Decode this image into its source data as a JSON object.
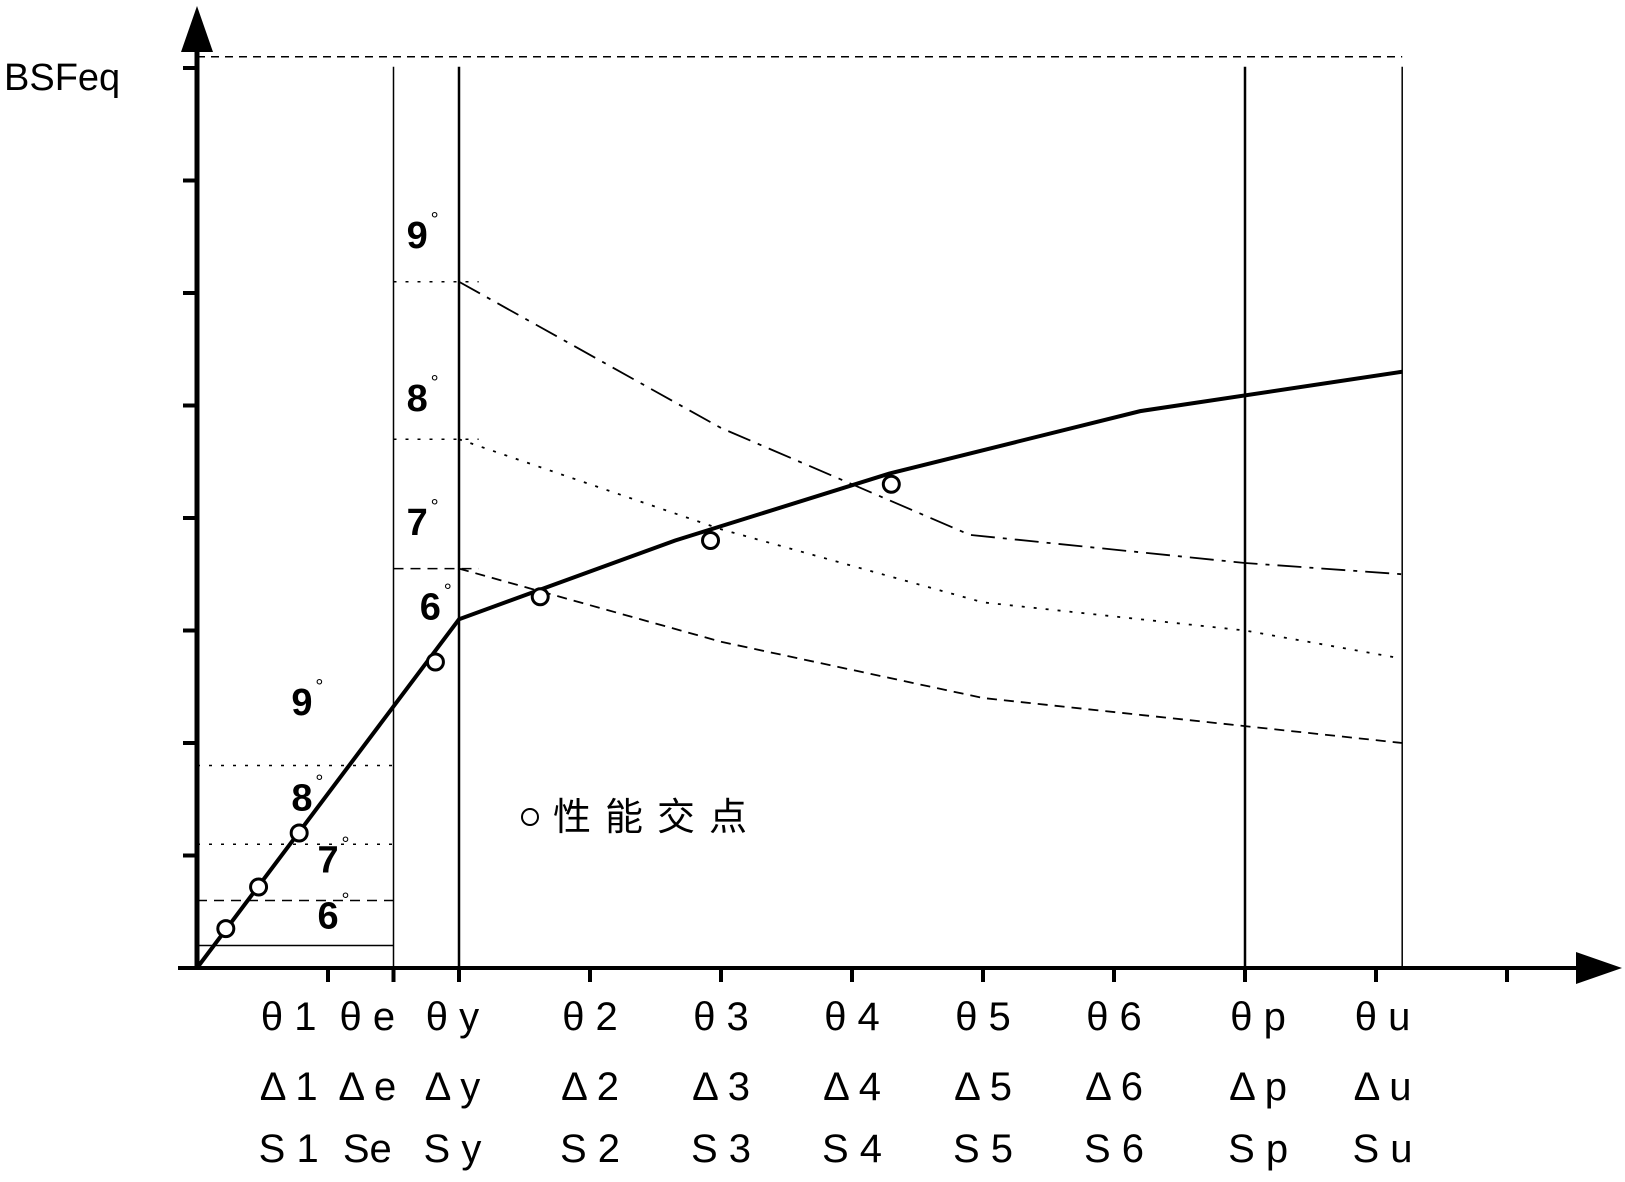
{
  "chart_data": {
    "type": "line",
    "ylabel": "BSFeq",
    "xlabel": "",
    "grid": false,
    "x_ticks": [
      {
        "theta": "θ 1",
        "delta": "Δ 1",
        "s": "S 1"
      },
      {
        "theta": "θ e",
        "delta": "Δ e",
        "s": "Se"
      },
      {
        "theta": "θ y",
        "delta": "Δ y",
        "s": "S y"
      },
      {
        "theta": "θ 2",
        "delta": "Δ 2",
        "s": "S 2"
      },
      {
        "theta": "θ 3",
        "delta": "Δ 3",
        "s": "S 3"
      },
      {
        "theta": "θ 4",
        "delta": "Δ 4",
        "s": "S 4"
      },
      {
        "theta": "θ 5",
        "delta": "Δ 5",
        "s": "S 5"
      },
      {
        "theta": "θ 6",
        "delta": "Δ 6",
        "s": "S 6"
      },
      {
        "theta": "θ p",
        "delta": "Δ p",
        "s": "S p"
      },
      {
        "theta": "θ u",
        "delta": "Δ u",
        "s": "S u"
      }
    ],
    "xlim": [
      0,
      10.3
    ],
    "ylim": [
      0,
      8.3
    ],
    "x_tick_positions": [
      1,
      1.5,
      2,
      3,
      4,
      5,
      6,
      7,
      8,
      9,
      10
    ],
    "y_tick_positions": [
      1,
      2,
      3,
      4,
      5,
      6,
      7,
      8
    ],
    "reference_x": [
      1.5,
      2,
      8,
      9.2
    ],
    "top_reference_y": 8.1,
    "series": [
      {
        "style": "solid",
        "x": [
          0,
          2,
          3.65,
          5.3,
          7.2,
          9.2
        ],
        "y": [
          0,
          3.1,
          3.8,
          4.4,
          4.95,
          5.3
        ]
      },
      {
        "style": "dashdot",
        "x": [
          2,
          4,
          5.9,
          8,
          9.2
        ],
        "y": [
          6.1,
          4.8,
          3.85,
          3.6,
          3.5
        ]
      },
      {
        "style": "dotted",
        "x": [
          2,
          4,
          6,
          8,
          9.2
        ],
        "y": [
          4.7,
          3.9,
          3.25,
          3.0,
          2.75
        ]
      },
      {
        "style": "dashed",
        "x": [
          2,
          4,
          6,
          8,
          9.2
        ],
        "y": [
          3.55,
          2.9,
          2.4,
          2.15,
          2.0
        ]
      }
    ],
    "left_levels": [
      {
        "style": "solid",
        "y": 0.2
      },
      {
        "style": "dashed",
        "y": 0.6
      },
      {
        "style": "dotted",
        "y": 1.1
      },
      {
        "style": "dotted",
        "y": 1.8
      }
    ],
    "plateau_levels": [
      {
        "style": "dotted",
        "y": 6.1
      },
      {
        "style": "dotted",
        "y": 4.7
      },
      {
        "style": "dashed",
        "y": 3.55
      }
    ],
    "intersection_points": [
      {
        "x": 0.22,
        "y": 0.35
      },
      {
        "x": 0.47,
        "y": 0.72
      },
      {
        "x": 0.78,
        "y": 1.2
      },
      {
        "x": 1.82,
        "y": 2.72
      },
      {
        "x": 2.62,
        "y": 3.3
      },
      {
        "x": 3.92,
        "y": 3.8
      },
      {
        "x": 5.3,
        "y": 4.3
      }
    ],
    "annotations": [
      {
        "text": "9",
        "deg": "°",
        "x": 0.72,
        "y": 2.25
      },
      {
        "text": "8",
        "deg": "°",
        "x": 0.72,
        "y": 1.4
      },
      {
        "text": "7",
        "deg": "°",
        "x": 0.92,
        "y": 0.85
      },
      {
        "text": "6",
        "deg": "°",
        "x": 0.92,
        "y": 0.35
      },
      {
        "text": "9",
        "deg": "°",
        "x": 1.6,
        "y": 6.4
      },
      {
        "text": "8",
        "deg": "°",
        "x": 1.6,
        "y": 4.95
      },
      {
        "text": "7",
        "deg": "°",
        "x": 1.6,
        "y": 3.85
      },
      {
        "text": "6",
        "deg": "°",
        "x": 1.7,
        "y": 3.1
      }
    ],
    "legend": {
      "symbol": "o",
      "label": "性能交点"
    }
  }
}
